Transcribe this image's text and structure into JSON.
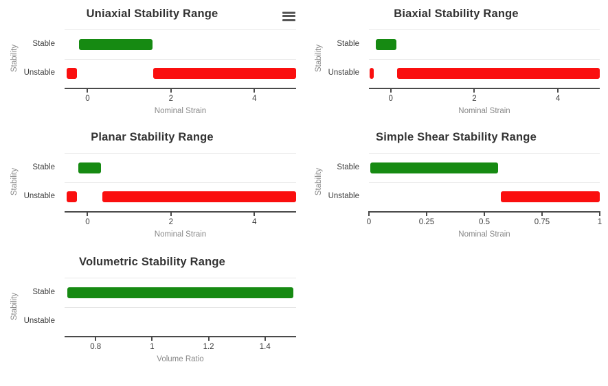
{
  "app": {
    "background": "#ffffff"
  },
  "colors": {
    "stable_green": "#168a12",
    "unstable_red": "#fa0f0f",
    "title_text": "#333333",
    "tick_text": "#3c3c3c",
    "axis_title_text": "#888888",
    "axis_line": "#4a4a4a",
    "gridline": "#e6e6e6",
    "menu_icon": "#555555"
  },
  "chart_data": [
    {
      "id": "uniaxial",
      "type": "bar",
      "orientation": "horizontal",
      "title": "Uniaxial Stability Range",
      "xlabel": "Nominal Strain",
      "ylabel": "Stability",
      "categories": [
        "Stable",
        "Unstable"
      ],
      "xlim": [
        -0.55,
        5.0
      ],
      "xticks": [
        0,
        2,
        4
      ],
      "xtick_labels": [
        "0",
        "2",
        "4"
      ],
      "grid": "band-separators",
      "legend": "none",
      "has_menu_icon": true,
      "series": [
        {
          "name": "Stable",
          "color_key": "stable_green",
          "ranges": [
            [
              -0.2,
              1.55
            ]
          ]
        },
        {
          "name": "Unstable",
          "color_key": "unstable_red",
          "ranges": [
            [
              -0.5,
              -0.25
            ],
            [
              1.58,
              5.0
            ]
          ]
        }
      ]
    },
    {
      "id": "biaxial",
      "type": "bar",
      "orientation": "horizontal",
      "title": "Biaxial Stability Range",
      "xlabel": "Nominal Strain",
      "ylabel": "Stability",
      "categories": [
        "Stable",
        "Unstable"
      ],
      "xlim": [
        -0.52,
        5.0
      ],
      "xticks": [
        0,
        2,
        4
      ],
      "xtick_labels": [
        "0",
        "2",
        "4"
      ],
      "grid": "band-separators",
      "legend": "none",
      "has_menu_icon": false,
      "series": [
        {
          "name": "Stable",
          "color_key": "stable_green",
          "ranges": [
            [
              -0.35,
              0.13
            ]
          ]
        },
        {
          "name": "Unstable",
          "color_key": "unstable_red",
          "ranges": [
            [
              -0.5,
              -0.4
            ],
            [
              0.15,
              5.0
            ]
          ]
        }
      ]
    },
    {
      "id": "planar",
      "type": "bar",
      "orientation": "horizontal",
      "title": "Planar Stability Range",
      "xlabel": "Nominal Strain",
      "ylabel": "Stability",
      "categories": [
        "Stable",
        "Unstable"
      ],
      "xlim": [
        -0.55,
        5.0
      ],
      "xticks": [
        0,
        2,
        4
      ],
      "xtick_labels": [
        "0",
        "2",
        "4"
      ],
      "grid": "band-separators",
      "legend": "none",
      "has_menu_icon": false,
      "series": [
        {
          "name": "Stable",
          "color_key": "stable_green",
          "ranges": [
            [
              -0.22,
              0.33
            ]
          ]
        },
        {
          "name": "Unstable",
          "color_key": "unstable_red",
          "ranges": [
            [
              -0.5,
              -0.25
            ],
            [
              0.36,
              5.0
            ]
          ]
        }
      ]
    },
    {
      "id": "simple_shear",
      "type": "bar",
      "orientation": "horizontal",
      "title": "Simple Shear Stability Range",
      "xlabel": "Nominal Strain",
      "ylabel": "Stability",
      "categories": [
        "Stable",
        "Unstable"
      ],
      "xlim": [
        0,
        1.0
      ],
      "xticks": [
        0,
        0.25,
        0.5,
        0.75,
        1
      ],
      "xtick_labels": [
        "0",
        "0.25",
        "0.5",
        "0.75",
        "1"
      ],
      "grid": "band-separators",
      "legend": "none",
      "has_menu_icon": false,
      "series": [
        {
          "name": "Stable",
          "color_key": "stable_green",
          "ranges": [
            [
              0.005,
              0.56
            ]
          ]
        },
        {
          "name": "Unstable",
          "color_key": "unstable_red",
          "ranges": [
            [
              0.57,
              1.0
            ]
          ]
        }
      ]
    },
    {
      "id": "volumetric",
      "type": "bar",
      "orientation": "horizontal",
      "title": "Volumetric Stability Range",
      "xlabel": "Volume Ratio",
      "ylabel": "Stability",
      "categories": [
        "Stable",
        "Unstable"
      ],
      "xlim": [
        0.69,
        1.51
      ],
      "xticks": [
        0.8,
        1,
        1.2,
        1.4
      ],
      "xtick_labels": [
        "0.8",
        "1",
        "1.2",
        "1.4"
      ],
      "grid": "band-separators",
      "legend": "none",
      "has_menu_icon": false,
      "series": [
        {
          "name": "Stable",
          "color_key": "stable_green",
          "ranges": [
            [
              0.7,
              1.5
            ]
          ]
        },
        {
          "name": "Unstable",
          "color_key": "unstable_red",
          "ranges": []
        }
      ]
    }
  ]
}
